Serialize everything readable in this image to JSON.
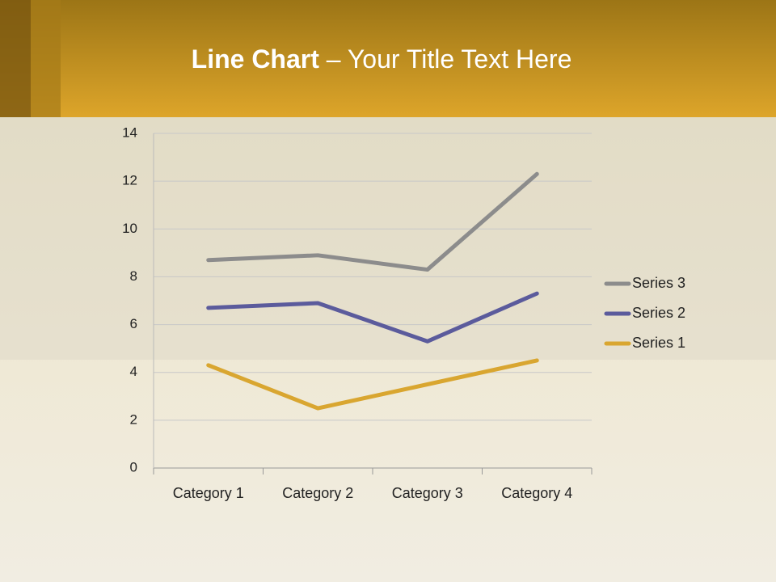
{
  "chart_data": {
    "type": "line",
    "stacked": true,
    "title_bold": "Line Chart",
    "title_rest": "– Your Title Text Here",
    "categories": [
      "Category 1",
      "Category 2",
      "Category 3",
      "Category 4"
    ],
    "series": [
      {
        "name": "Series 1",
        "color": "#d9a630",
        "values": [
          4.3,
          2.5,
          3.5,
          4.5
        ]
      },
      {
        "name": "Series 2",
        "color": "#5b5b9c",
        "values": [
          2.4,
          4.4,
          1.8,
          2.8
        ]
      },
      {
        "name": "Series 3",
        "color": "#8c8c8c",
        "values": [
          2,
          2,
          3,
          5
        ]
      }
    ],
    "ylim": [
      0,
      14
    ],
    "yticks": [
      0,
      2,
      4,
      6,
      8,
      10,
      12,
      14
    ],
    "grid": true,
    "legend": "right"
  }
}
